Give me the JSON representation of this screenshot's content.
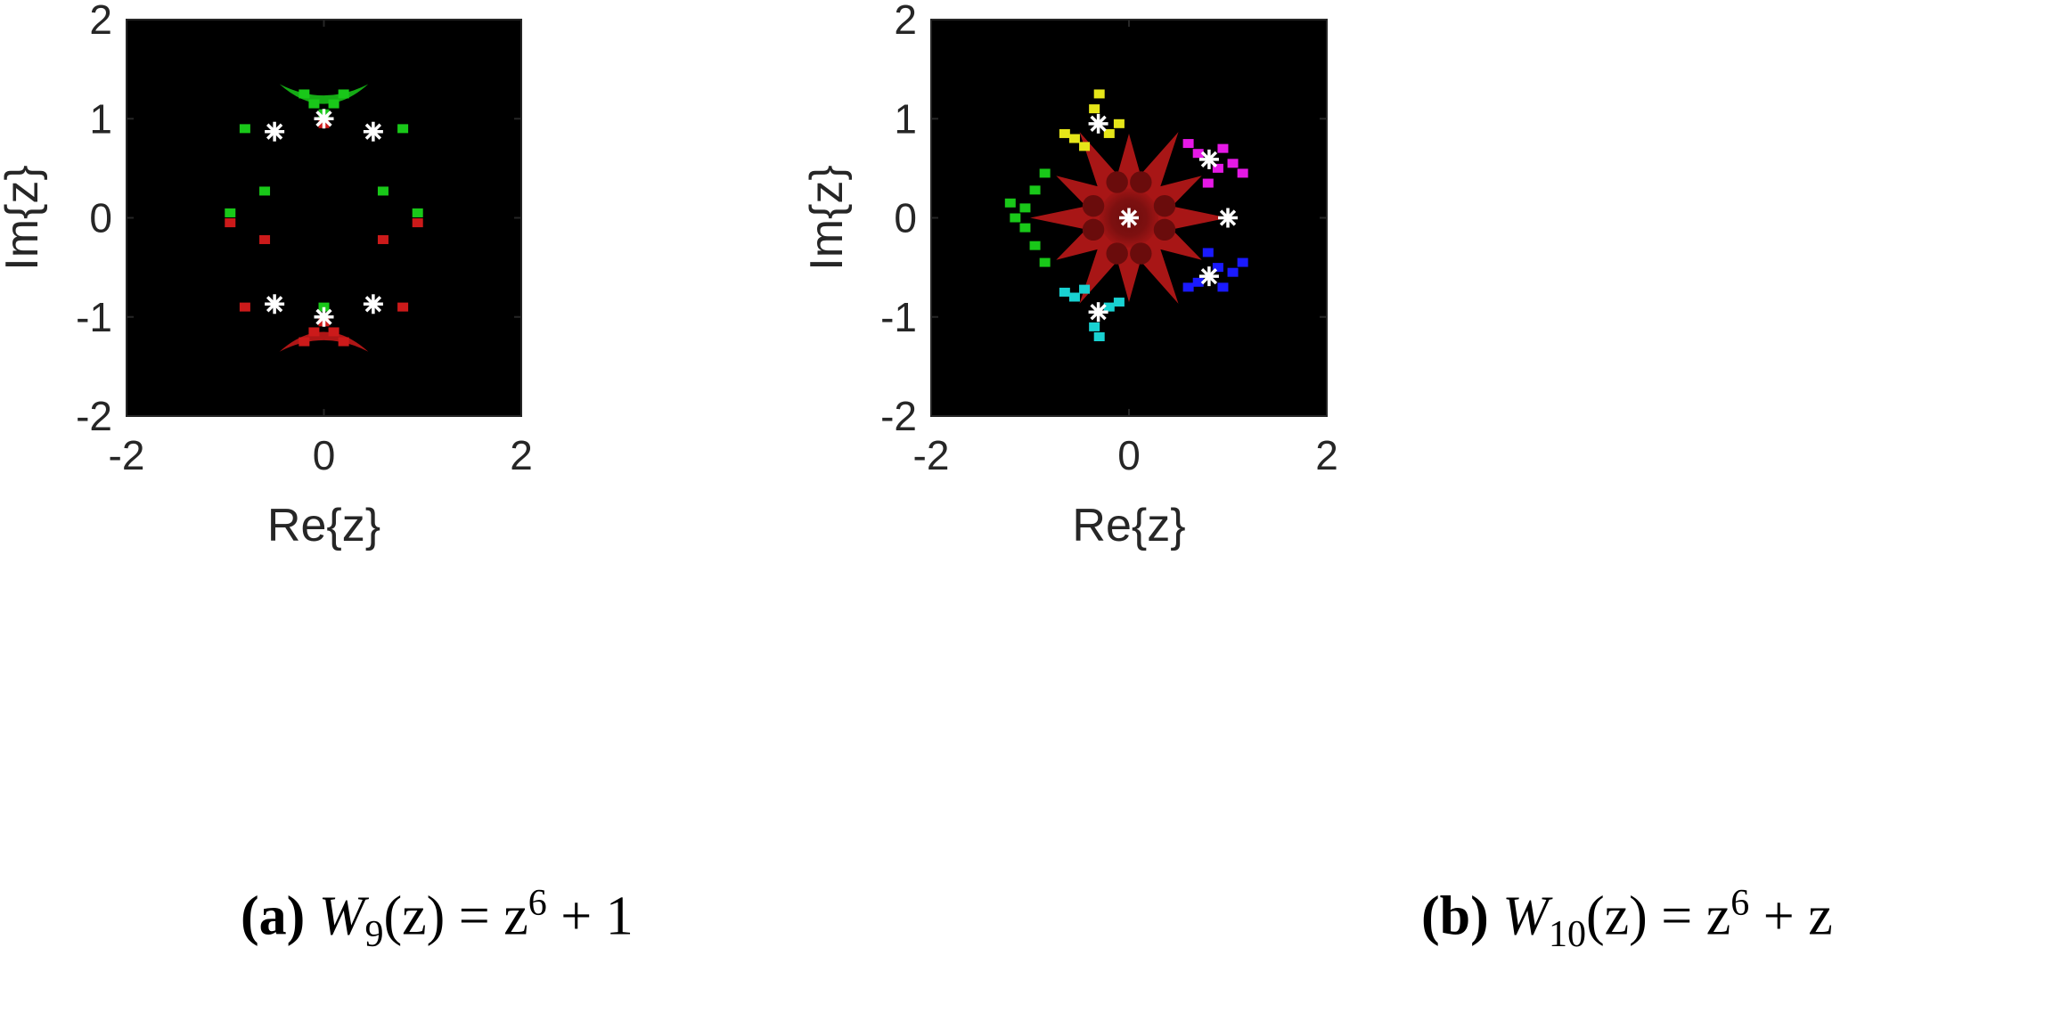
{
  "chart_data": [
    {
      "type": "scatter",
      "title": "",
      "xlabel": "Re{z}",
      "ylabel": "Im{z}",
      "xlim": [
        -2,
        2
      ],
      "ylim": [
        -2,
        2
      ],
      "xticks": [
        -2,
        0,
        2
      ],
      "yticks": [
        -2,
        -1,
        0,
        1,
        2
      ],
      "xtick_labels": [
        "-2",
        "0",
        "2"
      ],
      "ytick_labels": [
        "-2",
        "-1",
        "0",
        "1",
        "2"
      ],
      "background": "#000000",
      "marker_color": "#ffffff",
      "marker": "asterisk",
      "roots": {
        "x": [
          0,
          0.5,
          -0.5,
          0,
          0.5,
          -0.5
        ],
        "y": [
          1,
          0.87,
          0.87,
          -1,
          -0.87,
          -0.87
        ]
      },
      "basins": [
        {
          "color": "#19c819",
          "points": [
            [
              0,
              1.05
            ],
            [
              -0.1,
              1.15
            ],
            [
              0.1,
              1.15
            ],
            [
              -0.2,
              1.25
            ],
            [
              0.2,
              1.25
            ],
            [
              -0.6,
              0.27
            ],
            [
              0.6,
              0.27
            ],
            [
              -0.95,
              0.05
            ],
            [
              0.95,
              0.05
            ],
            [
              -0.8,
              0.9
            ],
            [
              0.8,
              0.9
            ],
            [
              0,
              -0.9
            ]
          ]
        },
        {
          "color": "#cc1a1a",
          "points": [
            [
              0,
              -1.05
            ],
            [
              -0.1,
              -1.15
            ],
            [
              0.1,
              -1.15
            ],
            [
              -0.2,
              -1.25
            ],
            [
              0.2,
              -1.25
            ],
            [
              -0.6,
              -0.22
            ],
            [
              0.6,
              -0.22
            ],
            [
              -0.95,
              -0.05
            ],
            [
              0.95,
              -0.05
            ],
            [
              -0.8,
              -0.9
            ],
            [
              0.8,
              -0.9
            ],
            [
              0,
              0.95
            ]
          ]
        }
      ],
      "caption": {
        "tag": "(a)",
        "function": "W",
        "index": "9",
        "formula": "(z) = z",
        "power": "6",
        "tail": " + 1"
      }
    },
    {
      "type": "scatter",
      "title": "",
      "xlabel": "Re{z}",
      "ylabel": "Im{z}",
      "xlim": [
        -2,
        2
      ],
      "ylim": [
        -2,
        2
      ],
      "xticks": [
        -2,
        0,
        2
      ],
      "yticks": [
        -2,
        -1,
        0,
        1,
        2
      ],
      "xtick_labels": [
        "-2",
        "0",
        "2"
      ],
      "ytick_labels": [
        "-2",
        "-1",
        "0",
        "1",
        "2"
      ],
      "background": "#000000",
      "marker_color": "#ffffff",
      "marker": "asterisk",
      "roots": {
        "x": [
          0,
          1,
          0.81,
          -0.31,
          -0.31,
          0.81
        ],
        "y": [
          0,
          0,
          0.59,
          0.95,
          -0.95,
          -0.59
        ]
      },
      "basins": [
        {
          "color": "#1a1aff",
          "points": [
            [
              0.9,
              -0.5
            ],
            [
              1.05,
              -0.55
            ],
            [
              1.15,
              -0.45
            ],
            [
              0.7,
              -0.65
            ],
            [
              0.95,
              -0.7
            ],
            [
              0.8,
              -0.35
            ],
            [
              0.6,
              -0.7
            ]
          ]
        },
        {
          "color": "#e619e6",
          "points": [
            [
              0.9,
              0.5
            ],
            [
              1.05,
              0.55
            ],
            [
              1.15,
              0.45
            ],
            [
              0.7,
              0.65
            ],
            [
              0.95,
              0.7
            ],
            [
              0.8,
              0.35
            ],
            [
              0.6,
              0.75
            ]
          ]
        },
        {
          "color": "#e6e619",
          "points": [
            [
              -0.35,
              1.1
            ],
            [
              -0.3,
              1.25
            ],
            [
              -0.55,
              0.8
            ],
            [
              -0.45,
              0.72
            ],
            [
              -0.65,
              0.85
            ],
            [
              -0.1,
              0.95
            ],
            [
              -0.2,
              0.85
            ]
          ]
        },
        {
          "color": "#19d2d2",
          "points": [
            [
              -0.35,
              -1.1
            ],
            [
              -0.3,
              -1.2
            ],
            [
              -0.55,
              -0.8
            ],
            [
              -0.45,
              -0.72
            ],
            [
              -0.65,
              -0.75
            ],
            [
              -0.1,
              -0.85
            ],
            [
              -0.2,
              -0.9
            ]
          ]
        },
        {
          "color": "#19c819",
          "points": [
            [
              -1.15,
              0
            ],
            [
              -1.05,
              0.1
            ],
            [
              -1.05,
              -0.1
            ],
            [
              -0.95,
              0.28
            ],
            [
              -0.95,
              -0.28
            ],
            [
              -0.85,
              0.45
            ],
            [
              -0.85,
              -0.45
            ],
            [
              -1.2,
              0.15
            ]
          ]
        }
      ],
      "caption": {
        "tag": "(b)",
        "function": "W",
        "index": "10",
        "formula": "(z) = z",
        "power": "6",
        "tail": " + z"
      }
    }
  ]
}
